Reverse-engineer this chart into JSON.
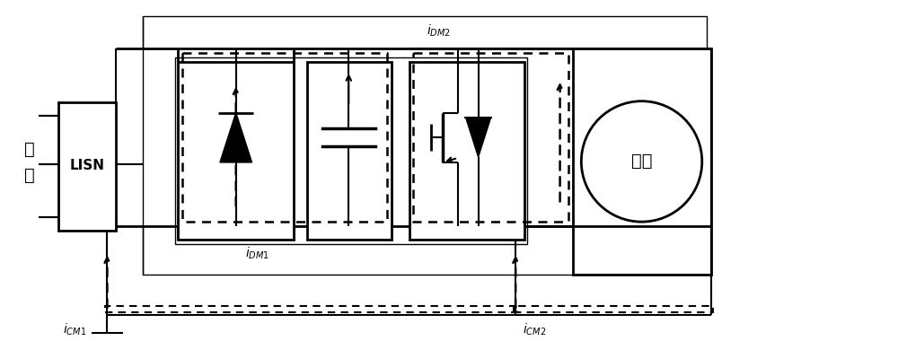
{
  "fig_width": 10.0,
  "fig_height": 3.8,
  "dpi": 100,
  "bg_color": "#ffffff",
  "lc": "#000000",
  "label_LISN": "LISN",
  "label_grid1": "电",
  "label_grid2": "网",
  "label_motor": "电机",
  "label_iDM1": "$i_{DM1}$",
  "label_iDM2": "$i_{DM2}$",
  "label_iCM1": "$i_{CM1}$",
  "label_iCM2": "$i_{CM2}$"
}
